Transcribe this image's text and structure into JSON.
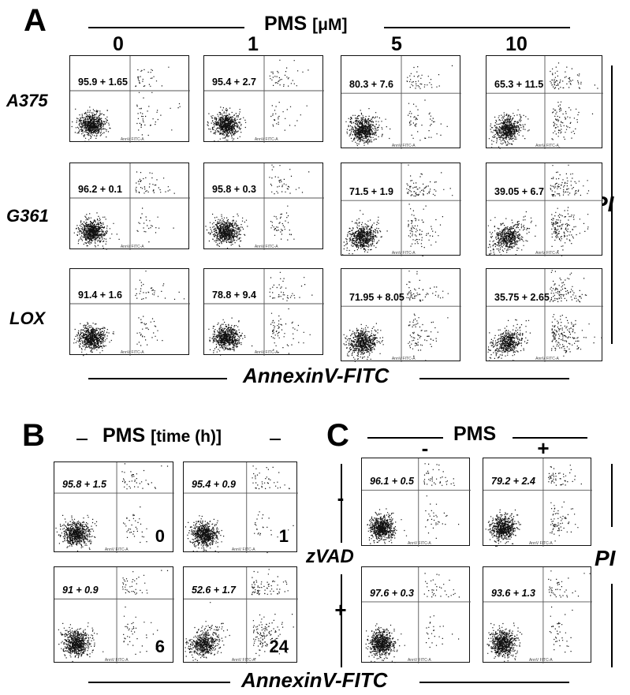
{
  "panel_A": {
    "letter": "A",
    "header": "PMS",
    "header_unit": "[μM]",
    "columns": [
      "0",
      "1",
      "5",
      "10"
    ],
    "rows": [
      "A375",
      "G361",
      "LOX"
    ],
    "x_axis_title": "AnnexinV-FITC",
    "y_axis_title": "PI"
  },
  "panel_B": {
    "letter": "B",
    "header": "PMS",
    "header_unit": "[time (h)]",
    "x_axis_title": "AnnexinV-FITC"
  },
  "panel_C": {
    "letter": "C",
    "header": "PMS",
    "columns": [
      "-",
      "+"
    ],
    "row_title": "zVAD",
    "rows": [
      "-",
      "+"
    ],
    "y_axis_title": "PI"
  },
  "x_tick_label": "AnnV FITC-A",
  "chart_data": [
    {
      "type": "scatter",
      "panel": "A",
      "xlabel": "AnnexinV-FITC",
      "ylabel": "PI",
      "quadrant_lines": true,
      "cells": [
        {
          "row": "A375",
          "col": "0",
          "label": "95.9 + 1.65",
          "viability_mean": 95.9,
          "viability_sd": 1.65
        },
        {
          "row": "A375",
          "col": "1",
          "label": "95.4 + 2.7",
          "viability_mean": 95.4,
          "viability_sd": 2.7
        },
        {
          "row": "A375",
          "col": "5",
          "label": "80.3 + 7.6",
          "viability_mean": 80.3,
          "viability_sd": 7.6
        },
        {
          "row": "A375",
          "col": "10",
          "label": "65.3 + 11.5",
          "viability_mean": 65.3,
          "viability_sd": 11.5
        },
        {
          "row": "G361",
          "col": "0",
          "label": "96.2 + 0.1",
          "viability_mean": 96.2,
          "viability_sd": 0.1
        },
        {
          "row": "G361",
          "col": "1",
          "label": "95.8 + 0.3",
          "viability_mean": 95.8,
          "viability_sd": 0.3
        },
        {
          "row": "G361",
          "col": "5",
          "label": "71.5 + 1.9",
          "viability_mean": 71.5,
          "viability_sd": 1.9
        },
        {
          "row": "G361",
          "col": "10",
          "label": "39.05 + 6.7",
          "viability_mean": 39.05,
          "viability_sd": 6.7
        },
        {
          "row": "LOX",
          "col": "0",
          "label": "91.4 + 1.6",
          "viability_mean": 91.4,
          "viability_sd": 1.6
        },
        {
          "row": "LOX",
          "col": "1",
          "label": "78.8 + 9.4",
          "viability_mean": 78.8,
          "viability_sd": 9.4
        },
        {
          "row": "LOX",
          "col": "5",
          "label": "71.95 + 8.05",
          "viability_mean": 71.95,
          "viability_sd": 8.05
        },
        {
          "row": "LOX",
          "col": "10",
          "label": "35.75 + 2.65",
          "viability_mean": 35.75,
          "viability_sd": 2.65
        }
      ]
    },
    {
      "type": "scatter",
      "panel": "B",
      "xlabel": "AnnexinV-FITC",
      "quadrant_lines": true,
      "cells": [
        {
          "time_h": "0",
          "label": "95.8 + 1.5",
          "viability_mean": 95.8,
          "viability_sd": 1.5
        },
        {
          "time_h": "1",
          "label": "95.4 + 0.9",
          "viability_mean": 95.4,
          "viability_sd": 0.9
        },
        {
          "time_h": "6",
          "label": "91 + 0.9",
          "viability_mean": 91,
          "viability_sd": 0.9
        },
        {
          "time_h": "24",
          "label": "52.6 + 1.7",
          "viability_mean": 52.6,
          "viability_sd": 1.7
        }
      ]
    },
    {
      "type": "scatter",
      "panel": "C",
      "ylabel": "PI",
      "quadrant_lines": true,
      "cells": [
        {
          "zVAD": "-",
          "PMS": "-",
          "label": "96.1 + 0.5",
          "viability_mean": 96.1,
          "viability_sd": 0.5
        },
        {
          "zVAD": "-",
          "PMS": "+",
          "label": "79.2 + 2.4",
          "viability_mean": 79.2,
          "viability_sd": 2.4
        },
        {
          "zVAD": "+",
          "PMS": "-",
          "label": "97.6 + 0.3",
          "viability_mean": 97.6,
          "viability_sd": 0.3
        },
        {
          "zVAD": "+",
          "PMS": "+",
          "label": "93.6 + 1.3",
          "viability_mean": 93.6,
          "viability_sd": 1.3
        }
      ]
    }
  ]
}
